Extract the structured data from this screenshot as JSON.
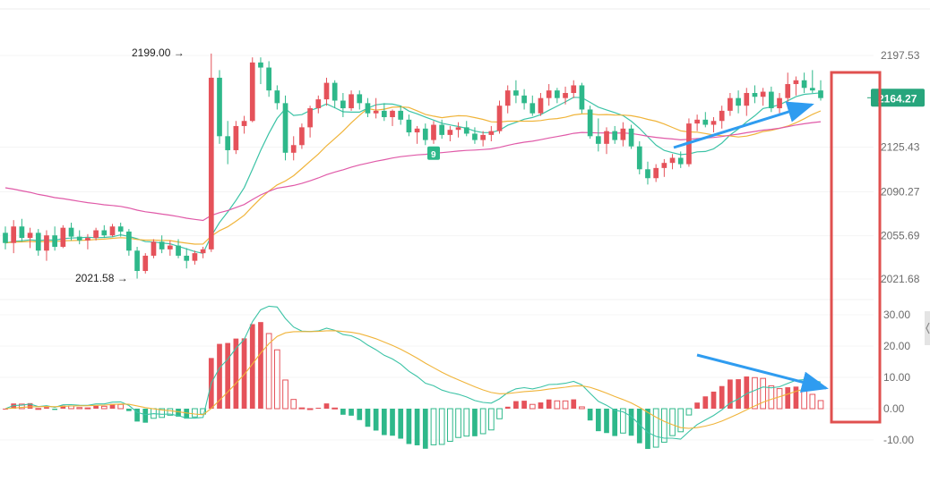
{
  "chart_data": [
    {
      "type": "candlestick",
      "y_axis_ticks": [
        2197.53,
        2125.43,
        2090.27,
        2055.69,
        2021.68
      ],
      "y_axis_labels": [
        "2197.53",
        "2125.43",
        "2090.27",
        "2055.69",
        "2021.68"
      ],
      "ylim": [
        2000,
        2210
      ],
      "last_price": 2164.27,
      "last_price_label": "2164.27",
      "high_annotation": "2199.00 →",
      "high_value": 2199.0,
      "low_annotation": "2021.58 →",
      "low_value": 2021.58,
      "marker_label": "9",
      "marker_index": 52,
      "colors": {
        "up": "#e5525a",
        "down": "#2eb88a",
        "ma_fast": "#3cc3a6",
        "ma_mid": "#f0b43a",
        "ma_slow": "#e05aa8",
        "price_tag_bg": "#27a57c",
        "box": "#e0504f",
        "arrow": "#2f9cf0"
      },
      "candles": [
        [
          2058,
          2063,
          2045,
          2050
        ],
        [
          2050,
          2068,
          2042,
          2063
        ],
        [
          2063,
          2069,
          2051,
          2054
        ],
        [
          2054,
          2062,
          2046,
          2058
        ],
        [
          2058,
          2061,
          2040,
          2044
        ],
        [
          2044,
          2060,
          2036,
          2056
        ],
        [
          2056,
          2063,
          2044,
          2047
        ],
        [
          2047,
          2064,
          2046,
          2062
        ],
        [
          2062,
          2066,
          2052,
          2055
        ],
        [
          2055,
          2060,
          2049,
          2052
        ],
        [
          2052,
          2057,
          2045,
          2054
        ],
        [
          2054,
          2062,
          2052,
          2060
        ],
        [
          2060,
          2064,
          2054,
          2056
        ],
        [
          2056,
          2065,
          2055,
          2063
        ],
        [
          2063,
          2066,
          2055,
          2059
        ],
        [
          2059,
          2061,
          2040,
          2044
        ],
        [
          2044,
          2047,
          2022,
          2028
        ],
        [
          2028,
          2042,
          2026,
          2040
        ],
        [
          2040,
          2053,
          2038,
          2051
        ],
        [
          2051,
          2056,
          2042,
          2045
        ],
        [
          2045,
          2052,
          2040,
          2048
        ],
        [
          2048,
          2053,
          2038,
          2040
        ],
        [
          2040,
          2046,
          2030,
          2036
        ],
        [
          2036,
          2044,
          2033,
          2042
        ],
        [
          2042,
          2047,
          2038,
          2045
        ],
        [
          2045,
          2199,
          2043,
          2180
        ],
        [
          2180,
          2186,
          2128,
          2134
        ],
        [
          2134,
          2146,
          2112,
          2123
        ],
        [
          2123,
          2146,
          2120,
          2142
        ],
        [
          2142,
          2150,
          2136,
          2146
        ],
        [
          2146,
          2196,
          2145,
          2192
        ],
        [
          2192,
          2196,
          2175,
          2188
        ],
        [
          2188,
          2193,
          2165,
          2170
        ],
        [
          2170,
          2174,
          2155,
          2160
        ],
        [
          2160,
          2166,
          2115,
          2121
        ],
        [
          2121,
          2134,
          2115,
          2127
        ],
        [
          2127,
          2144,
          2124,
          2141
        ],
        [
          2141,
          2158,
          2133,
          2156
        ],
        [
          2156,
          2166,
          2152,
          2163
        ],
        [
          2163,
          2180,
          2158,
          2176
        ],
        [
          2176,
          2178,
          2156,
          2162
        ],
        [
          2162,
          2168,
          2149,
          2156
        ],
        [
          2156,
          2170,
          2154,
          2167
        ],
        [
          2167,
          2170,
          2155,
          2160
        ],
        [
          2160,
          2164,
          2149,
          2152
        ],
        [
          2152,
          2164,
          2148,
          2154
        ],
        [
          2154,
          2160,
          2146,
          2149
        ],
        [
          2149,
          2155,
          2142,
          2154
        ],
        [
          2154,
          2158,
          2143,
          2147
        ],
        [
          2147,
          2151,
          2134,
          2137
        ],
        [
          2137,
          2142,
          2128,
          2140
        ],
        [
          2140,
          2144,
          2127,
          2131
        ],
        [
          2131,
          2146,
          2128,
          2143
        ],
        [
          2143,
          2147,
          2132,
          2135
        ],
        [
          2135,
          2142,
          2130,
          2139
        ],
        [
          2139,
          2145,
          2133,
          2141
        ],
        [
          2141,
          2146,
          2134,
          2136
        ],
        [
          2136,
          2141,
          2128,
          2131
        ],
        [
          2131,
          2138,
          2126,
          2135
        ],
        [
          2135,
          2142,
          2130,
          2138
        ],
        [
          2138,
          2162,
          2136,
          2158
        ],
        [
          2158,
          2174,
          2152,
          2170
        ],
        [
          2170,
          2178,
          2160,
          2166
        ],
        [
          2166,
          2171,
          2155,
          2160
        ],
        [
          2160,
          2166,
          2150,
          2152
        ],
        [
          2152,
          2168,
          2150,
          2164
        ],
        [
          2164,
          2175,
          2158,
          2170
        ],
        [
          2170,
          2172,
          2160,
          2164
        ],
        [
          2164,
          2173,
          2159,
          2168
        ],
        [
          2168,
          2178,
          2164,
          2174
        ],
        [
          2174,
          2176,
          2152,
          2155
        ],
        [
          2155,
          2158,
          2132,
          2134
        ],
        [
          2134,
          2148,
          2122,
          2128
        ],
        [
          2128,
          2141,
          2120,
          2138
        ],
        [
          2138,
          2142,
          2128,
          2131
        ],
        [
          2131,
          2145,
          2126,
          2140
        ],
        [
          2140,
          2143,
          2124,
          2126
        ],
        [
          2126,
          2130,
          2104,
          2108
        ],
        [
          2108,
          2114,
          2096,
          2101
        ],
        [
          2101,
          2112,
          2098,
          2109
        ],
        [
          2109,
          2116,
          2102,
          2113
        ],
        [
          2113,
          2120,
          2108,
          2117
        ],
        [
          2117,
          2122,
          2109,
          2112
        ],
        [
          2112,
          2148,
          2110,
          2144
        ],
        [
          2144,
          2151,
          2138,
          2147
        ],
        [
          2147,
          2153,
          2141,
          2143
        ],
        [
          2143,
          2149,
          2137,
          2146
        ],
        [
          2146,
          2158,
          2140,
          2154
        ],
        [
          2154,
          2168,
          2150,
          2164
        ],
        [
          2164,
          2170,
          2152,
          2158
        ],
        [
          2158,
          2172,
          2150,
          2168
        ],
        [
          2168,
          2174,
          2160,
          2165
        ],
        [
          2165,
          2172,
          2158,
          2169
        ],
        [
          2169,
          2173,
          2153,
          2156
        ],
        [
          2156,
          2168,
          2152,
          2164
        ],
        [
          2164,
          2184,
          2158,
          2175
        ],
        [
          2175,
          2181,
          2166,
          2178
        ],
        [
          2178,
          2184,
          2168,
          2172
        ],
        [
          2172,
          2186,
          2168,
          2170
        ],
        [
          2170,
          2178,
          2162,
          2164
        ]
      ],
      "moving_averages": [
        {
          "period": 5
        },
        {
          "period": 10
        },
        {
          "period": 60
        }
      ]
    },
    {
      "type": "histogram",
      "indicator": "MACD",
      "y_axis_ticks": [
        30,
        20,
        10,
        0,
        -10
      ],
      "y_axis_labels": [
        "30.00",
        "20.00",
        "10.00",
        "0.00",
        "-10.00"
      ],
      "ylim": [
        -11,
        33
      ]
    }
  ]
}
